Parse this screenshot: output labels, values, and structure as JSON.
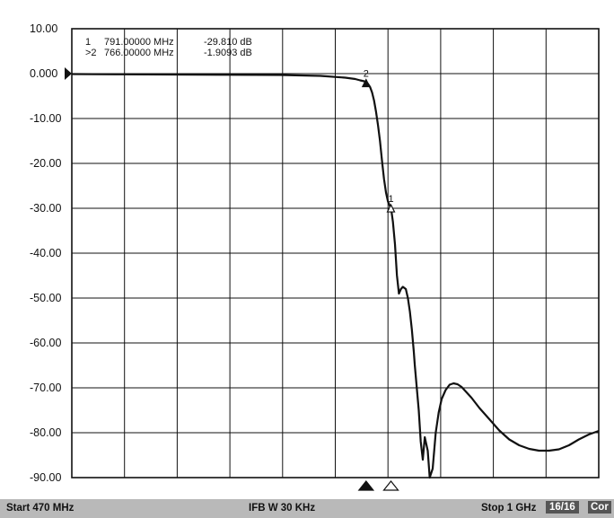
{
  "chart_data": {
    "type": "line",
    "title": "",
    "xlabel": "",
    "ylabel": "",
    "xlim": [
      470,
      1000
    ],
    "ylim": [
      -90,
      10
    ],
    "y_ticks": [
      "10.00",
      "0.000",
      "-10.00",
      "-20.00",
      "-30.00",
      "-40.00",
      "-50.00",
      "-60.00",
      "-70.00",
      "-80.00",
      "-90.00"
    ],
    "y_tick_values": [
      10,
      0,
      -10,
      -20,
      -30,
      -40,
      -50,
      -60,
      -70,
      -80,
      -90
    ],
    "grid": true,
    "x_divisions": 10,
    "y_divisions": 10,
    "reference_level": 0,
    "series": [
      {
        "x": [
          470,
          520,
          570,
          620,
          680,
          720,
          745,
          755,
          760,
          764,
          766,
          768,
          770,
          772,
          774,
          776,
          778,
          780,
          782,
          784,
          786,
          788,
          790,
          791,
          793,
          795,
          797,
          799,
          801,
          803,
          806,
          808,
          810,
          812,
          814,
          815,
          817,
          819,
          821,
          823,
          825,
          828,
          830,
          833,
          836,
          839,
          842,
          846,
          850,
          854,
          858,
          862,
          867,
          872,
          880,
          890,
          900,
          910,
          920,
          930,
          940,
          950,
          960,
          970,
          980,
          990,
          1000
        ],
        "y": [
          -0.1,
          -0.15,
          -0.2,
          -0.25,
          -0.3,
          -0.5,
          -0.9,
          -1.2,
          -1.5,
          -1.7,
          -1.9,
          -2.3,
          -3.0,
          -4.2,
          -6.0,
          -8.5,
          -11.5,
          -15.0,
          -19.5,
          -23.5,
          -26.5,
          -28.5,
          -29.5,
          -29.8,
          -33.0,
          -38.0,
          -45.0,
          -49.0,
          -48.0,
          -47.5,
          -48.0,
          -50.0,
          -53.0,
          -57.0,
          -62.0,
          -65.0,
          -70.0,
          -75.0,
          -82.0,
          -86.0,
          -81.0,
          -84.0,
          -90.0,
          -88.0,
          -80.0,
          -75.5,
          -72.5,
          -70.5,
          -69.3,
          -69.0,
          -69.2,
          -69.8,
          -71.0,
          -72.2,
          -74.5,
          -77.0,
          -79.5,
          -81.5,
          -82.8,
          -83.6,
          -84.0,
          -84.0,
          -83.7,
          -82.8,
          -81.5,
          -80.4,
          -79.6
        ]
      }
    ],
    "markers": [
      {
        "label": "1",
        "frequency": "791.00000 MHz",
        "value": "-29.810 dB",
        "x": 791,
        "y": -29.81,
        "active": false
      },
      {
        "label": ">2",
        "frequency": "766.00000 MHz",
        "value": "-1.9093 dB",
        "x": 766,
        "y": -1.9093,
        "active": true
      }
    ]
  },
  "status": {
    "start": "Start 470 MHz",
    "ifbw": "IFB W 30 KHz",
    "stop": "Stop 1 GHz",
    "count": "16/16",
    "correction": "Cor"
  }
}
